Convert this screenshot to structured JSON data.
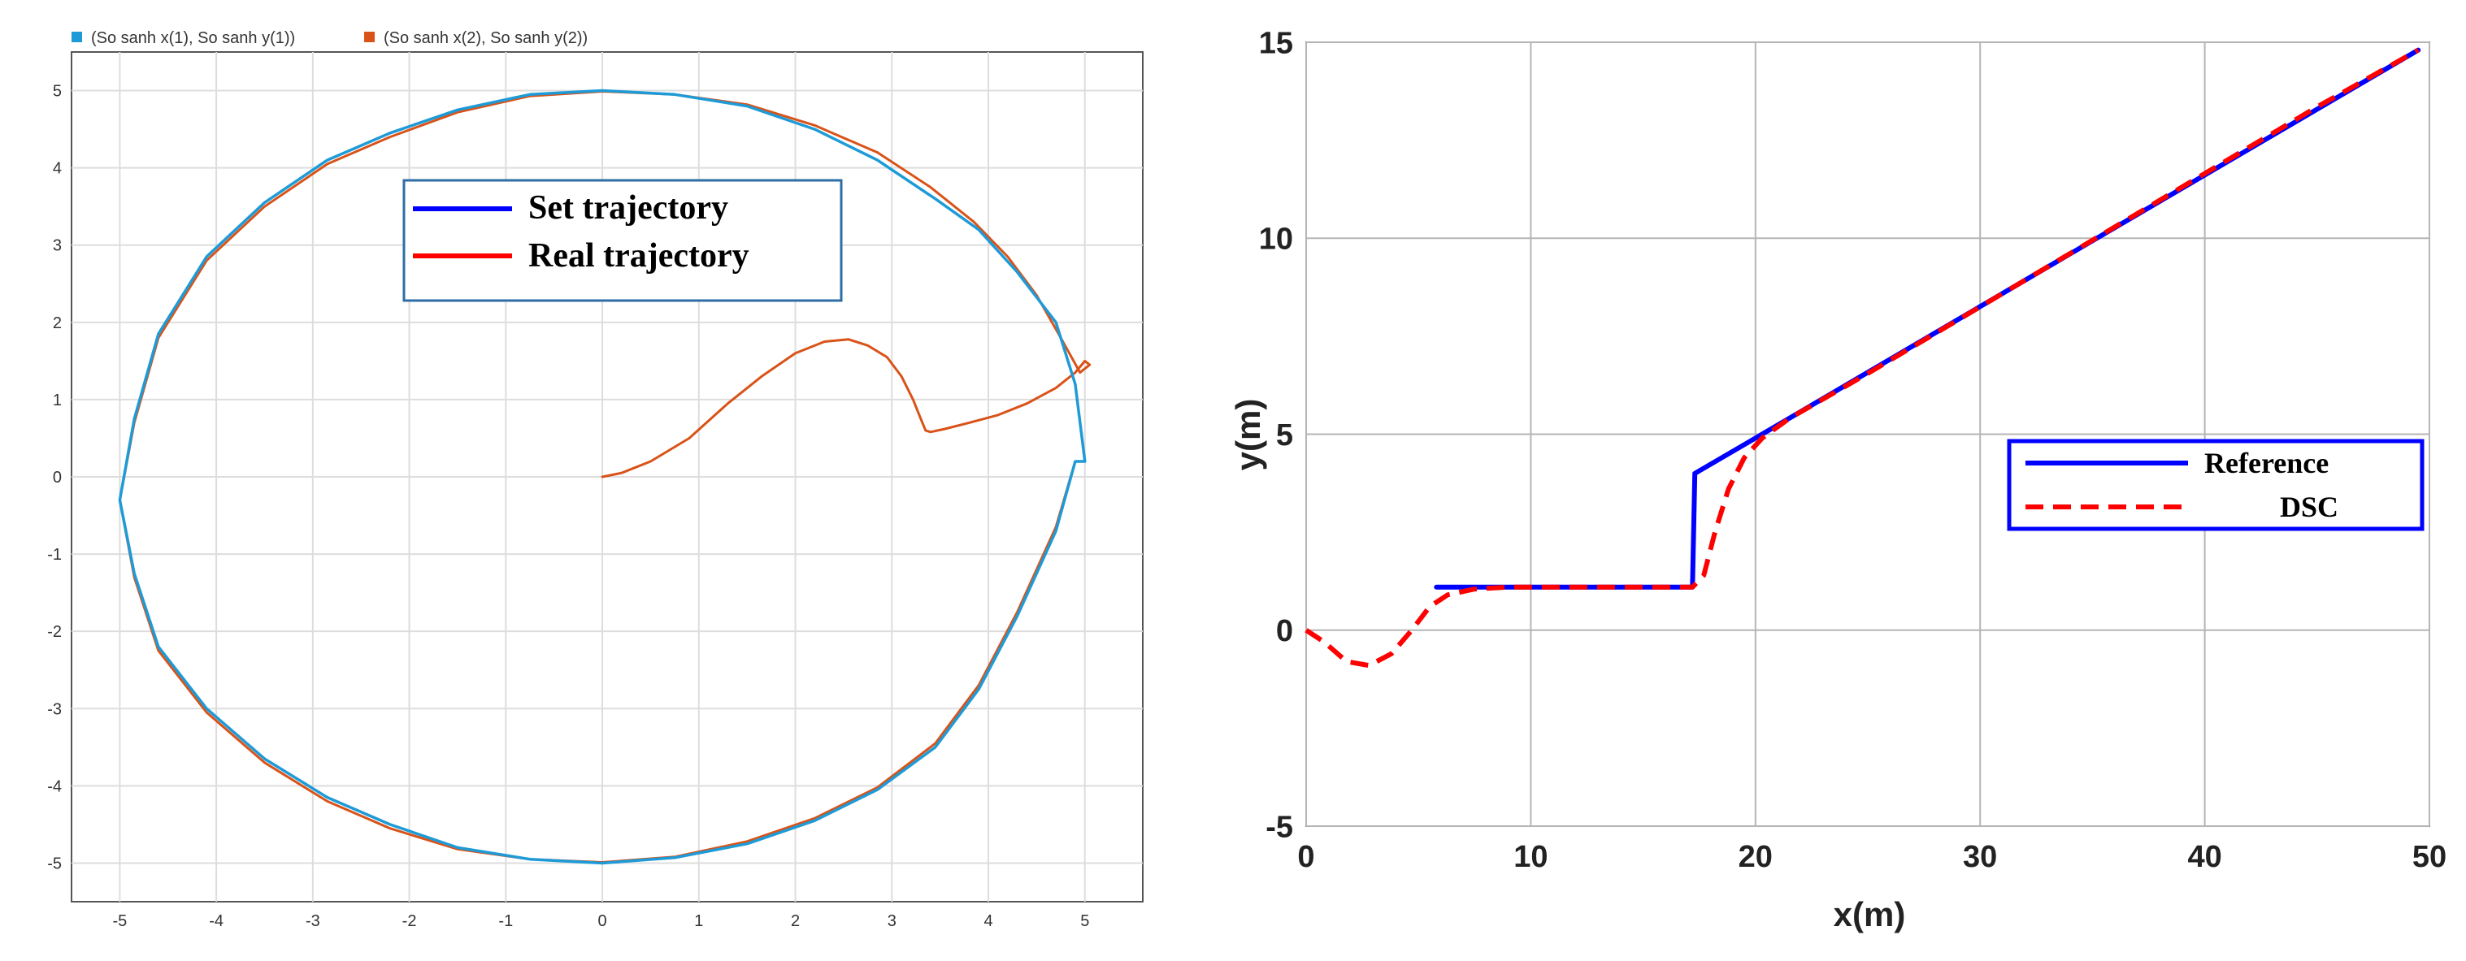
{
  "left_legend_top": [
    {
      "label": "(So sanh x(1), So sanh y(1))",
      "color": "#1e9bd7"
    },
    {
      "label": "(So sanh x(2), So sanh y(2))",
      "color": "#d95319"
    }
  ],
  "right_legend_top": [],
  "chart_data": [
    {
      "type": "line",
      "title": "",
      "xlabel": "",
      "ylabel": "",
      "xlim": [
        -5.5,
        5.6
      ],
      "ylim": [
        -5.5,
        5.5
      ],
      "xticks": [
        -5,
        -4,
        -3,
        -2,
        -1,
        0,
        1,
        2,
        3,
        4,
        5
      ],
      "xtick_labels": [
        "-5",
        "-4",
        "-3",
        "-2",
        "-1",
        "0",
        "1",
        "2",
        "3",
        "4",
        "5"
      ],
      "yticks": [
        -5,
        -4,
        -3,
        -2,
        -1,
        0,
        1,
        2,
        3,
        4,
        5
      ],
      "ytick_labels": [
        "-5",
        "-4",
        "-3",
        "-2",
        "-1",
        "0",
        "1",
        "2",
        "3",
        "4",
        "5"
      ],
      "grid": true,
      "legend": {
        "placement": "top-center",
        "entries": [
          "Set trajectory",
          "Real trajectory"
        ]
      },
      "series": [
        {
          "name": "Set trajectory",
          "color": "#1e9bd7",
          "x": [
            5.0,
            4.9,
            4.7,
            4.3,
            3.9,
            3.45,
            2.85,
            2.2,
            1.5,
            0.75,
            0.0,
            -0.75,
            -1.5,
            -2.2,
            -2.85,
            -3.5,
            -4.1,
            -4.6,
            -4.85,
            -5.0,
            -4.85,
            -4.6,
            -4.1,
            -3.5,
            -2.85,
            -2.2,
            -1.5,
            -0.75,
            0.0,
            0.75,
            1.5,
            2.2,
            2.85,
            3.45,
            3.9,
            4.3,
            4.7,
            4.9,
            5.0
          ],
          "y": [
            0.2,
            1.2,
            2.0,
            2.65,
            3.2,
            3.6,
            4.1,
            4.5,
            4.8,
            4.95,
            5.0,
            4.95,
            4.75,
            4.45,
            4.1,
            3.55,
            2.85,
            1.85,
            0.75,
            -0.3,
            -1.25,
            -2.2,
            -3.0,
            -3.65,
            -4.15,
            -4.5,
            -4.8,
            -4.95,
            -5.0,
            -4.93,
            -4.75,
            -4.45,
            -4.05,
            -3.5,
            -2.75,
            -1.8,
            -0.7,
            0.2,
            0.2
          ]
        },
        {
          "name": "Real trajectory",
          "color": "#d95319",
          "x": [
            0.0,
            0.2,
            0.5,
            0.9,
            1.3,
            1.65,
            2.0,
            2.3,
            2.55,
            2.75,
            2.95,
            3.1,
            3.22,
            3.3,
            3.35,
            3.4,
            3.55,
            3.8,
            4.1,
            4.4,
            4.7,
            4.9,
            5.0,
            5.05,
            4.95,
            4.75,
            4.5,
            4.2,
            3.85,
            3.4,
            2.85,
            2.2,
            1.5,
            0.75,
            0.0,
            -0.75,
            -1.5,
            -2.2,
            -2.85,
            -3.5,
            -4.1,
            -4.6,
            -4.85,
            -5.0,
            -4.85,
            -4.6,
            -4.1,
            -3.5,
            -2.85,
            -2.2,
            -1.5,
            -0.75,
            0.0,
            0.75,
            1.5,
            2.2,
            2.85,
            3.45,
            3.9,
            4.3,
            4.7,
            4.9,
            5.0
          ],
          "y": [
            0.0,
            0.05,
            0.2,
            0.5,
            0.95,
            1.3,
            1.6,
            1.75,
            1.78,
            1.7,
            1.55,
            1.3,
            1.0,
            0.75,
            0.6,
            0.58,
            0.62,
            0.7,
            0.8,
            0.95,
            1.15,
            1.35,
            1.5,
            1.45,
            1.35,
            1.8,
            2.35,
            2.85,
            3.3,
            3.75,
            4.2,
            4.55,
            4.82,
            4.95,
            4.99,
            4.93,
            4.72,
            4.4,
            4.05,
            3.5,
            2.8,
            1.8,
            0.7,
            -0.3,
            -1.3,
            -2.25,
            -3.05,
            -3.7,
            -4.2,
            -4.55,
            -4.82,
            -4.95,
            -4.99,
            -4.92,
            -4.72,
            -4.42,
            -4.02,
            -3.45,
            -2.7,
            -1.75,
            -0.65,
            0.2,
            0.2
          ]
        }
      ]
    },
    {
      "type": "line",
      "title": "",
      "xlabel": "x(m)",
      "ylabel": "y(m)",
      "xlim": [
        0,
        50
      ],
      "ylim": [
        -5,
        15
      ],
      "xticks": [
        0,
        10,
        20,
        30,
        40,
        50
      ],
      "xtick_labels": [
        "0",
        "10",
        "20",
        "30",
        "40",
        "50"
      ],
      "yticks": [
        -5,
        0,
        5,
        10,
        15
      ],
      "ytick_labels": [
        "-5",
        "0",
        "5",
        "10",
        "15"
      ],
      "grid": true,
      "legend": {
        "placement": "middle-right",
        "entries": [
          "Reference",
          "DSC"
        ]
      },
      "series": [
        {
          "name": "Reference",
          "color": "#0000ff",
          "style": "solid",
          "x": [
            5.8,
            17.2,
            17.2,
            17.3,
            20.0,
            49.5
          ],
          "y": [
            1.1,
            1.1,
            1.2,
            4.0,
            4.9,
            14.8
          ]
        },
        {
          "name": "DSC",
          "color": "#ff0000",
          "style": "dashed",
          "x": [
            0.0,
            0.8,
            1.8,
            2.8,
            3.8,
            4.7,
            5.5,
            6.3,
            7.5,
            9.0,
            12.0,
            15.0,
            17.2,
            17.7,
            18.2,
            18.8,
            19.5,
            20.3,
            21.5,
            25.0,
            30.0,
            35.0,
            40.0,
            45.0,
            49.5
          ],
          "y": [
            0.0,
            -0.3,
            -0.8,
            -0.9,
            -0.6,
            0.0,
            0.6,
            0.9,
            1.05,
            1.1,
            1.1,
            1.1,
            1.1,
            1.4,
            2.5,
            3.6,
            4.4,
            4.9,
            5.4,
            6.55,
            8.25,
            9.95,
            11.65,
            13.35,
            14.8
          ]
        }
      ]
    }
  ]
}
